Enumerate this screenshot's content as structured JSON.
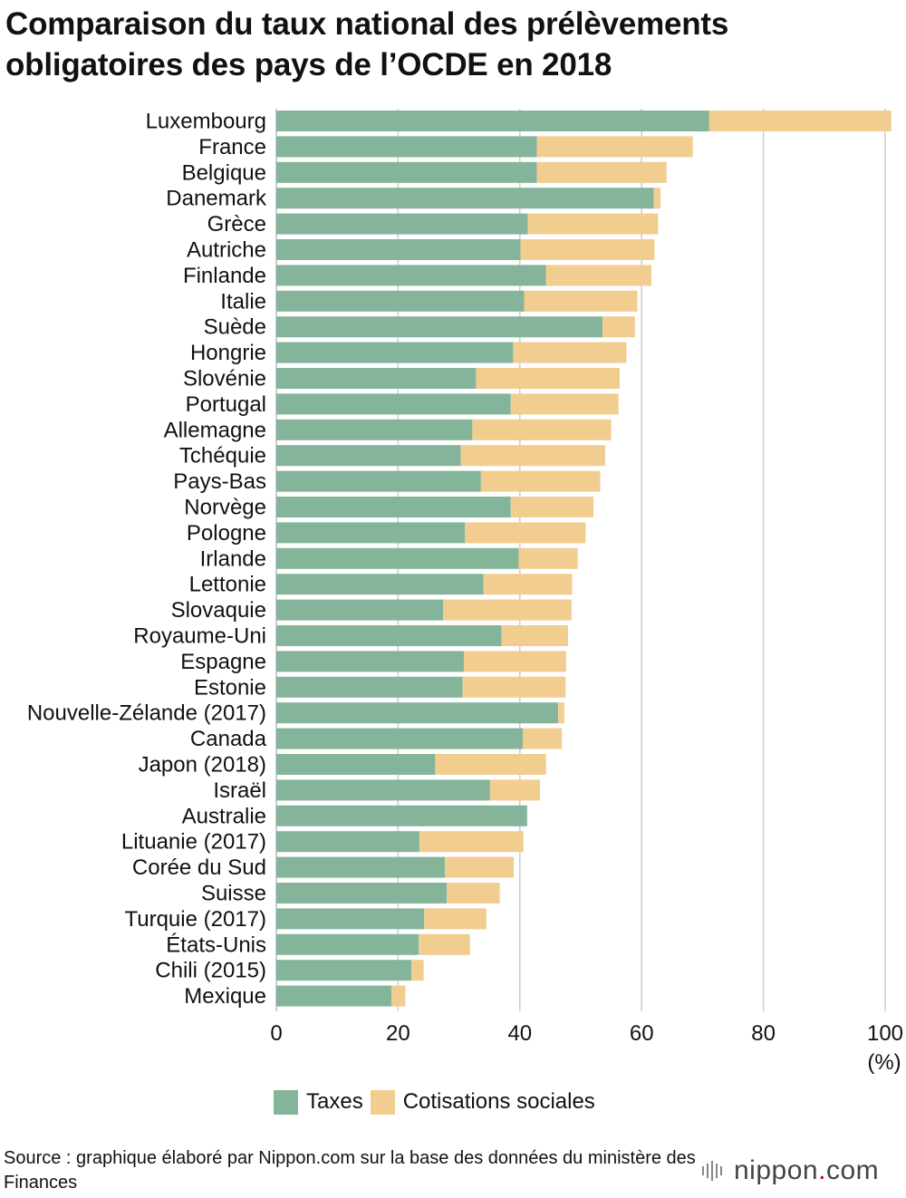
{
  "title": "Comparaison du taux national des prélèvements obligatoires des pays de l’OCDE en 2018",
  "source": "Source : graphique élaboré par Nippon.com sur la base des données du ministère des Finances",
  "logo": {
    "name": "nippon",
    "dot": ".",
    "tld": "com"
  },
  "colors": {
    "taxes": "#84b59b",
    "cotisations": "#f2cd90",
    "grid": "#cccccc"
  },
  "chart_data": {
    "type": "bar",
    "orientation": "horizontal",
    "stacked": true,
    "title": "Comparaison du taux national des prélèvements obligatoires des pays de l’OCDE en 2018",
    "unit": "(%)",
    "xlim": [
      0,
      100
    ],
    "xticks": [
      0,
      20,
      40,
      60,
      80,
      100
    ],
    "grid": true,
    "legend_position": "bottom",
    "categories": [
      "Luxembourg",
      "France",
      "Belgique",
      "Danemark",
      "Grèce",
      "Autriche",
      "Finlande",
      "Italie",
      "Suède",
      "Hongrie",
      "Slovénie",
      "Portugal",
      "Allemagne",
      "Tchéquie",
      "Pays-Bas",
      "Norvège",
      "Pologne",
      "Irlande",
      "Lettonie",
      "Slovaquie",
      "Royaume-Uni",
      "Espagne",
      "Estonie",
      "Nouvelle-Zélande (2017)",
      "Canada",
      "Japon (2018)",
      "Israël",
      "Australie",
      "Lituanie (2017)",
      "Corée du Sud",
      "Suisse",
      "Turquie (2017)",
      "États-Unis",
      "Chili (2015)",
      "Mexique"
    ],
    "series": [
      {
        "name": "Taxes",
        "color": "#84b59b",
        "values": [
          71.1,
          42.8,
          42.8,
          62.0,
          41.3,
          40.1,
          44.3,
          40.7,
          53.6,
          38.9,
          32.8,
          38.5,
          32.2,
          30.3,
          33.6,
          38.5,
          31.0,
          39.8,
          34.0,
          27.4,
          37.0,
          30.8,
          30.6,
          46.3,
          40.5,
          26.1,
          35.1,
          41.2,
          23.5,
          27.7,
          28.0,
          24.3,
          23.4,
          22.2,
          18.9
        ]
      },
      {
        "name": "Cotisations sociales",
        "color": "#f2cd90",
        "values": [
          29.9,
          25.6,
          21.3,
          1.1,
          21.4,
          22.0,
          17.3,
          18.6,
          5.3,
          18.6,
          23.6,
          17.7,
          22.8,
          23.7,
          19.6,
          13.6,
          19.8,
          9.7,
          14.6,
          21.1,
          10.9,
          16.8,
          16.9,
          1.0,
          6.4,
          18.2,
          8.2,
          0.0,
          17.1,
          11.3,
          8.7,
          10.2,
          8.4,
          2.0,
          2.3
        ]
      }
    ]
  }
}
